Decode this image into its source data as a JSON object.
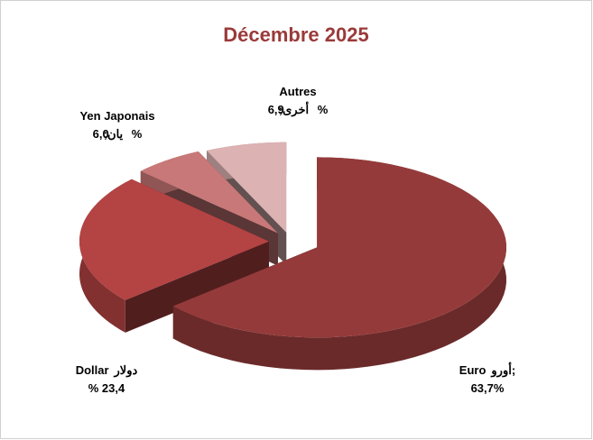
{
  "chart_data": {
    "type": "pie3d",
    "title": "Décembre 2025",
    "categories": [
      "Euro",
      "Dollar",
      "Yen Japonais",
      "Autres"
    ],
    "categories_ar": [
      "أورو;",
      "دولار",
      "يان;",
      "أخرى;"
    ],
    "values": [
      63.7,
      23.4,
      6.0,
      6.9
    ],
    "value_labels": [
      "63,7%",
      "%  23,4",
      "6,0  %",
      "6,9  %"
    ],
    "colors": [
      "#953a3a",
      "#b44343",
      "#c87878",
      "#dcb2b2"
    ]
  }
}
